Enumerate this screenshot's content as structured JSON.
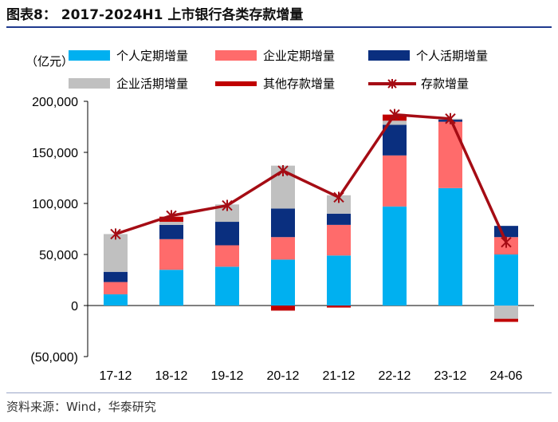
{
  "header": {
    "title": "图表8：  2017-2024H1 上市银行各类存款增量"
  },
  "unit_label": "（亿元）",
  "source": "资料来源：Wind，华泰研究",
  "colors": {
    "personal_term": "#00b0f0",
    "corporate_term": "#ff6b6b",
    "personal_demand": "#0a2f7f",
    "corporate_demand": "#c0c0c0",
    "other": "#c00000",
    "total_line": "#a50c14"
  },
  "chart_data": {
    "type": "bar",
    "stacked": true,
    "categories": [
      "17-12",
      "18-12",
      "19-12",
      "20-12",
      "21-12",
      "22-12",
      "23-12",
      "24-06"
    ],
    "ylim": [
      -50000,
      200000
    ],
    "yticks": [
      -50000,
      0,
      50000,
      100000,
      150000,
      200000
    ],
    "ytick_labels": [
      "(50,000)",
      "0",
      "50,000",
      "100,000",
      "150,000",
      "200,000"
    ],
    "legend_position": "top",
    "series": [
      {
        "name": "个人定期增量",
        "values": [
          11000,
          35000,
          38000,
          45000,
          49000,
          97000,
          115000,
          50000
        ]
      },
      {
        "name": "企业定期增量",
        "values": [
          12000,
          30000,
          21000,
          22000,
          30000,
          50000,
          65000,
          17000
        ]
      },
      {
        "name": "个人活期增量",
        "values": [
          10000,
          14000,
          23000,
          28000,
          11000,
          30000,
          2000,
          11000
        ]
      },
      {
        "name": "企业活期增量",
        "values": [
          37000,
          3000,
          17000,
          42000,
          18000,
          4000,
          1000,
          -13000
        ]
      },
      {
        "name": "其他存款增量",
        "values": [
          0,
          5000,
          0,
          -5000,
          -2000,
          6000,
          0,
          -3000
        ]
      }
    ],
    "line_series": {
      "name": "存款增量",
      "values": [
        70000,
        88000,
        98000,
        132000,
        106000,
        187000,
        183000,
        62000
      ]
    }
  }
}
